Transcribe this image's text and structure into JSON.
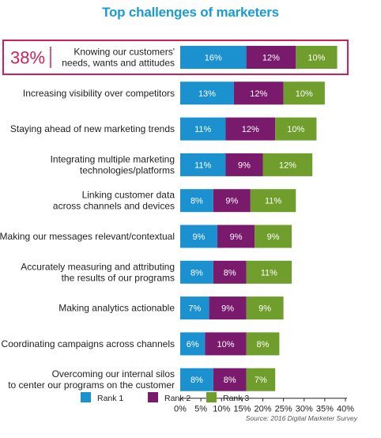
{
  "chart_data": {
    "type": "bar",
    "orientation": "horizontal",
    "stacked": true,
    "title": "Top challenges of marketers",
    "highlight": {
      "category_index": 0,
      "value_label": "38%",
      "color": "#d21f57"
    },
    "categories": [
      [
        "Knowing our customers'",
        "needs, wants and attitudes"
      ],
      [
        "Increasing visibility over competitors"
      ],
      [
        "Staying ahead of new marketing trends"
      ],
      [
        "Integrating multiple marketing",
        "technologies/platforms"
      ],
      [
        "Linking customer data",
        "across channels and devices"
      ],
      [
        "Making our messages relevant/contextual"
      ],
      [
        "Accurately measuring and attributing",
        "the results of our programs"
      ],
      [
        "Making analytics actionable"
      ],
      [
        "Coordinating campaigns across channels"
      ],
      [
        "Overcoming our internal silos",
        "to center our programs on the customer"
      ]
    ],
    "series": [
      {
        "name": "Rank 1",
        "color": "#1b91d0",
        "values": [
          16,
          13,
          11,
          11,
          8,
          9,
          8,
          7,
          6,
          8
        ]
      },
      {
        "name": "Rank 2",
        "color": "#7a1a6c",
        "values": [
          12,
          12,
          12,
          9,
          9,
          9,
          8,
          9,
          10,
          8
        ]
      },
      {
        "name": "Rank 3",
        "color": "#6f9e2d",
        "values": [
          10,
          10,
          10,
          12,
          11,
          9,
          11,
          9,
          8,
          7
        ]
      }
    ],
    "xlim": [
      0,
      40
    ],
    "xticks": [
      "0%",
      "5%",
      "10%",
      "15%",
      "20%",
      "25%",
      "30%",
      "35%",
      "40%"
    ],
    "value_suffix": "%",
    "legend_position": "bottom",
    "grid": false
  },
  "source_note": "Source: 2016 Digital Marketer Survey"
}
